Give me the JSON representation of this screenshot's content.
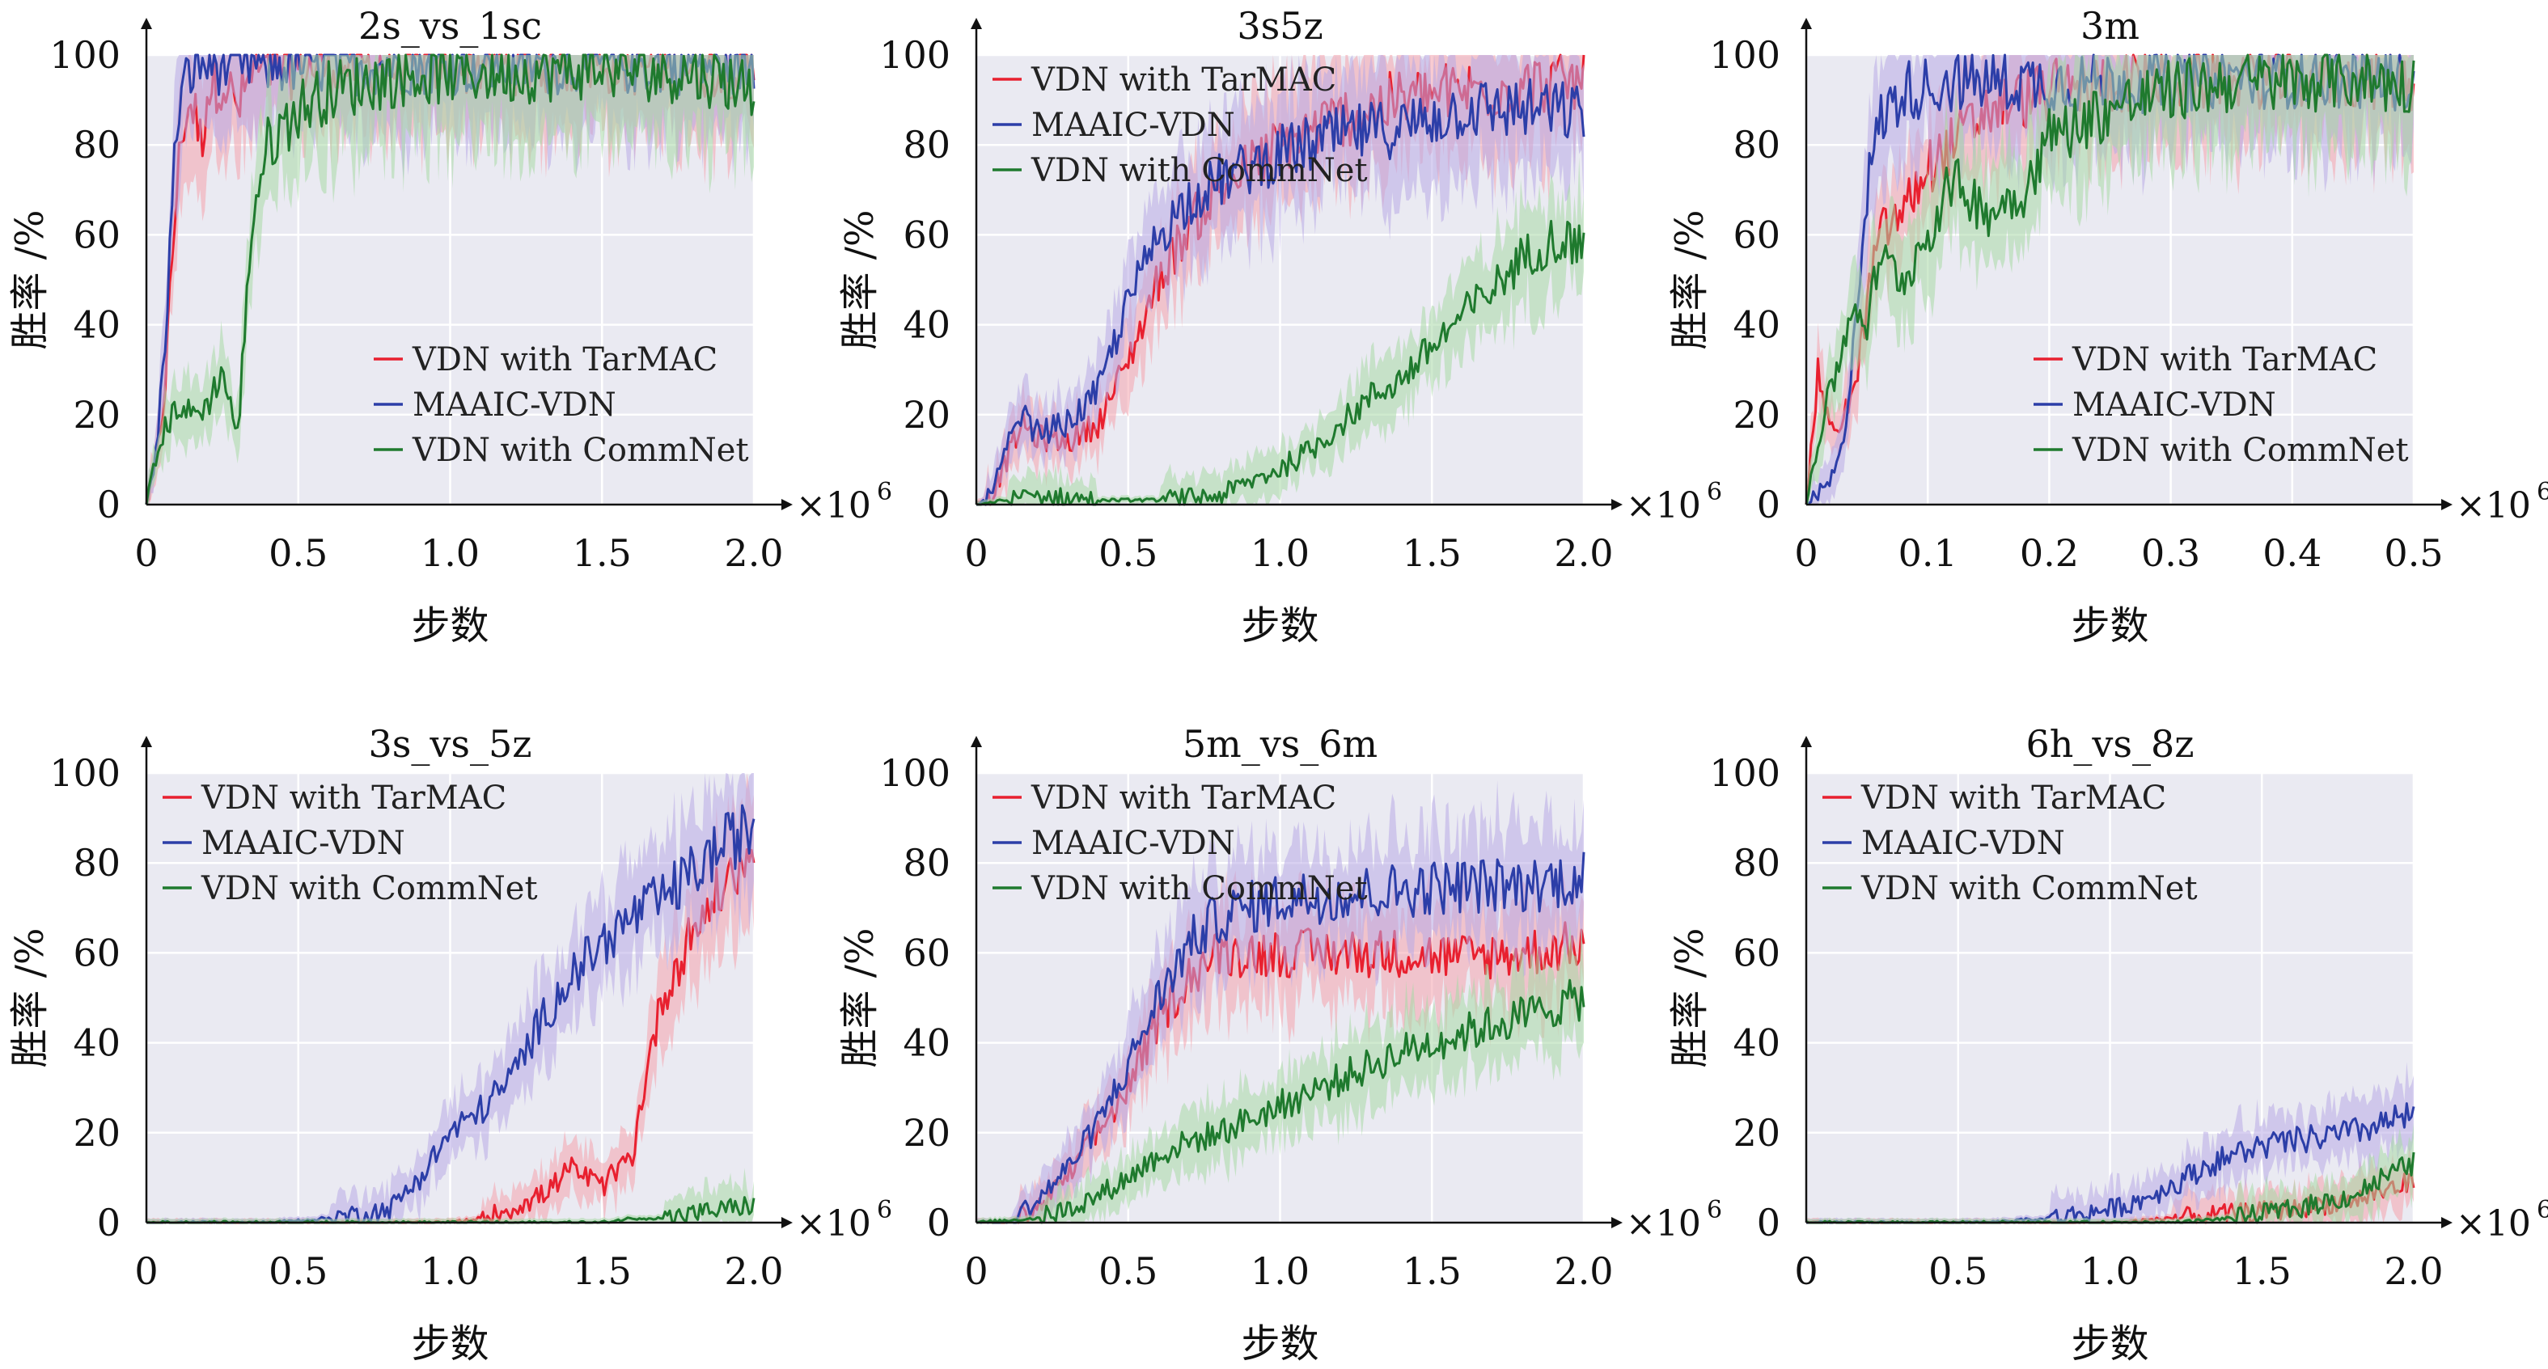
{
  "figure": {
    "background": "#eaeaf2",
    "grid_color": "#ffffff",
    "ylabel": "胜率 /%",
    "xlabel": "步数",
    "x_multiplier": "×10",
    "x_multiplier_exp": "6"
  },
  "series_styles": [
    {
      "name": "VDN with TarMAC",
      "color": "#e8202f",
      "band": "#f4a3ad"
    },
    {
      "name": "MAAIC-VDN",
      "color": "#2c3ea8",
      "band": "#b8a9e6"
    },
    {
      "name": "VDN with CommNet",
      "color": "#1f7a2e",
      "band": "#a7d8a6"
    }
  ],
  "chart_data": [
    {
      "type": "line",
      "title": "2s_vs_1sc",
      "xlim": [
        0,
        2.0
      ],
      "ylim": [
        0,
        100
      ],
      "xticks": [
        "0",
        "0.5",
        "1.0",
        "1.5",
        "2.0"
      ],
      "yticks": [
        "0",
        "20",
        "40",
        "60",
        "80",
        "100"
      ],
      "grid": true,
      "legend_position": "lower-right",
      "series": [
        {
          "name": "VDN with TarMAC",
          "x": [
            0,
            0.03,
            0.06,
            0.08,
            0.1,
            0.12,
            0.15,
            0.18,
            0.2,
            0.25,
            0.3,
            0.35,
            0.4,
            0.5,
            0.6,
            0.8,
            1.0,
            1.5,
            2.0
          ],
          "values": [
            0,
            8,
            25,
            50,
            70,
            85,
            90,
            80,
            92,
            95,
            88,
            96,
            97,
            97,
            98,
            98,
            98,
            98,
            97
          ]
        },
        {
          "name": "MAAIC-VDN",
          "x": [
            0,
            0.03,
            0.06,
            0.08,
            0.1,
            0.12,
            0.15,
            0.18,
            0.2,
            0.25,
            0.3,
            0.4,
            0.5,
            0.6,
            0.8,
            1.0,
            1.5,
            2.0
          ],
          "values": [
            0,
            10,
            35,
            60,
            85,
            92,
            97,
            98,
            98,
            98,
            98,
            98,
            98,
            98,
            98,
            98,
            98,
            98
          ]
        },
        {
          "name": "VDN with CommNet",
          "x": [
            0,
            0.05,
            0.1,
            0.15,
            0.2,
            0.25,
            0.3,
            0.35,
            0.4,
            0.5,
            0.6,
            0.8,
            1.0,
            1.2,
            1.5,
            1.8,
            2.0
          ],
          "values": [
            0,
            15,
            22,
            20,
            22,
            30,
            15,
            65,
            80,
            88,
            92,
            95,
            96,
            96,
            97,
            96,
            93
          ]
        }
      ]
    },
    {
      "type": "line",
      "title": "3s5z",
      "xlim": [
        0,
        2.0
      ],
      "ylim": [
        0,
        100
      ],
      "xticks": [
        "0",
        "0.5",
        "1.0",
        "1.5",
        "2.0"
      ],
      "yticks": [
        "0",
        "20",
        "40",
        "60",
        "80",
        "100"
      ],
      "grid": true,
      "legend_position": "top-left",
      "series": [
        {
          "name": "VDN with TarMAC",
          "x": [
            0,
            0.05,
            0.1,
            0.15,
            0.2,
            0.3,
            0.4,
            0.5,
            0.6,
            0.7,
            0.8,
            1.0,
            1.2,
            1.4,
            1.6,
            1.8,
            2.0
          ],
          "values": [
            0,
            2,
            10,
            18,
            15,
            14,
            18,
            32,
            50,
            62,
            70,
            80,
            86,
            90,
            92,
            93,
            94
          ]
        },
        {
          "name": "MAAIC-VDN",
          "x": [
            0,
            0.05,
            0.1,
            0.15,
            0.2,
            0.3,
            0.4,
            0.5,
            0.6,
            0.7,
            0.8,
            1.0,
            1.2,
            1.4,
            1.6,
            1.8,
            2.0
          ],
          "values": [
            0,
            2,
            12,
            20,
            16,
            18,
            25,
            45,
            60,
            68,
            72,
            78,
            82,
            84,
            88,
            88,
            87
          ]
        },
        {
          "name": "VDN with CommNet",
          "x": [
            0,
            0.1,
            0.2,
            0.4,
            0.6,
            0.8,
            0.9,
            1.0,
            1.1,
            1.2,
            1.3,
            1.4,
            1.5,
            1.6,
            1.7,
            1.8,
            1.9,
            2.0
          ],
          "values": [
            0,
            1,
            2,
            1,
            1,
            2,
            5,
            8,
            12,
            18,
            24,
            28,
            35,
            42,
            48,
            55,
            59,
            58
          ]
        }
      ]
    },
    {
      "type": "line",
      "title": "3m",
      "xlim": [
        0,
        0.5
      ],
      "ylim": [
        0,
        100
      ],
      "xticks": [
        "0",
        "0.1",
        "0.2",
        "0.3",
        "0.4",
        "0.5"
      ],
      "yticks": [
        "0",
        "20",
        "40",
        "60",
        "80",
        "100"
      ],
      "grid": true,
      "legend_position": "lower-right",
      "series": [
        {
          "name": "VDN with TarMAC",
          "x": [
            0,
            0.01,
            0.02,
            0.03,
            0.04,
            0.05,
            0.06,
            0.08,
            0.1,
            0.12,
            0.15,
            0.2,
            0.25,
            0.3,
            0.35,
            0.4,
            0.45,
            0.5
          ],
          "values": [
            0,
            30,
            15,
            20,
            25,
            45,
            60,
            65,
            75,
            80,
            88,
            92,
            94,
            94,
            95,
            95,
            95,
            94
          ]
        },
        {
          "name": "MAAIC-VDN",
          "x": [
            0,
            0.01,
            0.02,
            0.03,
            0.04,
            0.05,
            0.06,
            0.08,
            0.1,
            0.12,
            0.15,
            0.2,
            0.25,
            0.3,
            0.35,
            0.4,
            0.45,
            0.5
          ],
          "values": [
            0,
            2,
            5,
            12,
            40,
            70,
            85,
            92,
            93,
            94,
            94,
            94,
            94,
            94,
            95,
            95,
            95,
            94
          ]
        },
        {
          "name": "VDN with CommNet",
          "x": [
            0,
            0.01,
            0.02,
            0.03,
            0.04,
            0.05,
            0.06,
            0.08,
            0.1,
            0.12,
            0.15,
            0.18,
            0.2,
            0.25,
            0.3,
            0.35,
            0.4,
            0.45,
            0.5
          ],
          "values": [
            0,
            15,
            25,
            35,
            45,
            40,
            55,
            50,
            60,
            72,
            65,
            70,
            82,
            88,
            92,
            94,
            94,
            95,
            93
          ]
        }
      ]
    },
    {
      "type": "line",
      "title": "3s_vs_5z",
      "xlim": [
        0,
        2.0
      ],
      "ylim": [
        0,
        100
      ],
      "xticks": [
        "0",
        "0.5",
        "1.0",
        "1.5",
        "2.0"
      ],
      "yticks": [
        "0",
        "20",
        "40",
        "60",
        "80",
        "100"
      ],
      "grid": true,
      "legend_position": "top-left",
      "series": [
        {
          "name": "VDN with TarMAC",
          "x": [
            0,
            0.5,
            1.0,
            1.1,
            1.2,
            1.3,
            1.4,
            1.5,
            1.6,
            1.65,
            1.7,
            1.8,
            1.9,
            2.0
          ],
          "values": [
            0,
            0,
            0,
            1,
            3,
            6,
            12,
            8,
            15,
            35,
            50,
            65,
            75,
            82
          ]
        },
        {
          "name": "MAAIC-VDN",
          "x": [
            0,
            0.4,
            0.6,
            0.8,
            0.9,
            1.0,
            1.1,
            1.2,
            1.3,
            1.4,
            1.5,
            1.6,
            1.7,
            1.8,
            1.9,
            2.0
          ],
          "values": [
            0,
            0,
            1,
            3,
            10,
            20,
            25,
            32,
            45,
            55,
            62,
            68,
            72,
            78,
            84,
            88
          ]
        },
        {
          "name": "VDN with CommNet",
          "x": [
            0,
            0.5,
            1.0,
            1.5,
            1.6,
            1.7,
            1.8,
            1.9,
            2.0
          ],
          "values": [
            0,
            0,
            0,
            0,
            1,
            1,
            2,
            3,
            4
          ]
        }
      ]
    },
    {
      "type": "line",
      "title": "5m_vs_6m",
      "xlim": [
        0,
        2.0
      ],
      "ylim": [
        0,
        100
      ],
      "xticks": [
        "0",
        "0.5",
        "1.0",
        "1.5",
        "2.0"
      ],
      "yticks": [
        "0",
        "20",
        "40",
        "60",
        "80",
        "100"
      ],
      "grid": true,
      "legend_position": "top-left",
      "series": [
        {
          "name": "VDN with TarMAC",
          "x": [
            0,
            0.1,
            0.2,
            0.3,
            0.4,
            0.5,
            0.6,
            0.7,
            0.8,
            0.9,
            1.0,
            1.2,
            1.4,
            1.6,
            1.8,
            2.0
          ],
          "values": [
            0,
            0,
            3,
            10,
            20,
            30,
            45,
            55,
            60,
            60,
            60,
            60,
            60,
            59,
            60,
            62
          ]
        },
        {
          "name": "MAAIC-VDN",
          "x": [
            0,
            0.1,
            0.2,
            0.3,
            0.4,
            0.5,
            0.6,
            0.7,
            0.8,
            0.9,
            1.0,
            1.2,
            1.4,
            1.6,
            1.8,
            2.0
          ],
          "values": [
            0,
            0,
            5,
            12,
            22,
            35,
            50,
            62,
            68,
            70,
            72,
            73,
            74,
            75,
            75,
            77
          ]
        },
        {
          "name": "VDN with CommNet",
          "x": [
            0,
            0.2,
            0.3,
            0.4,
            0.5,
            0.6,
            0.7,
            0.8,
            1.0,
            1.2,
            1.4,
            1.6,
            1.8,
            2.0
          ],
          "values": [
            0,
            1,
            3,
            6,
            10,
            15,
            18,
            20,
            26,
            32,
            38,
            42,
            46,
            50
          ]
        }
      ]
    },
    {
      "type": "line",
      "title": "6h_vs_8z",
      "xlim": [
        0,
        2.0
      ],
      "ylim": [
        0,
        100
      ],
      "xticks": [
        "0",
        "0.5",
        "1.0",
        "1.5",
        "2.0"
      ],
      "yticks": [
        "0",
        "20",
        "40",
        "60",
        "80",
        "100"
      ],
      "grid": true,
      "legend_position": "top-left",
      "series": [
        {
          "name": "VDN with TarMAC",
          "x": [
            0,
            0.5,
            1.0,
            1.2,
            1.4,
            1.6,
            1.8,
            1.9,
            2.0
          ],
          "values": [
            0,
            0,
            0,
            1,
            2,
            3,
            5,
            7,
            9
          ]
        },
        {
          "name": "MAAIC-VDN",
          "x": [
            0,
            0.6,
            0.8,
            1.0,
            1.1,
            1.2,
            1.3,
            1.4,
            1.5,
            1.6,
            1.7,
            1.8,
            1.9,
            2.0
          ],
          "values": [
            0,
            0,
            1,
            3,
            5,
            8,
            12,
            15,
            17,
            18,
            19,
            20,
            22,
            24
          ]
        },
        {
          "name": "VDN with CommNet",
          "x": [
            0,
            0.5,
            1.0,
            1.2,
            1.4,
            1.6,
            1.8,
            1.9,
            2.0
          ],
          "values": [
            0,
            0,
            0,
            0,
            1,
            3,
            6,
            10,
            13
          ]
        }
      ]
    }
  ]
}
